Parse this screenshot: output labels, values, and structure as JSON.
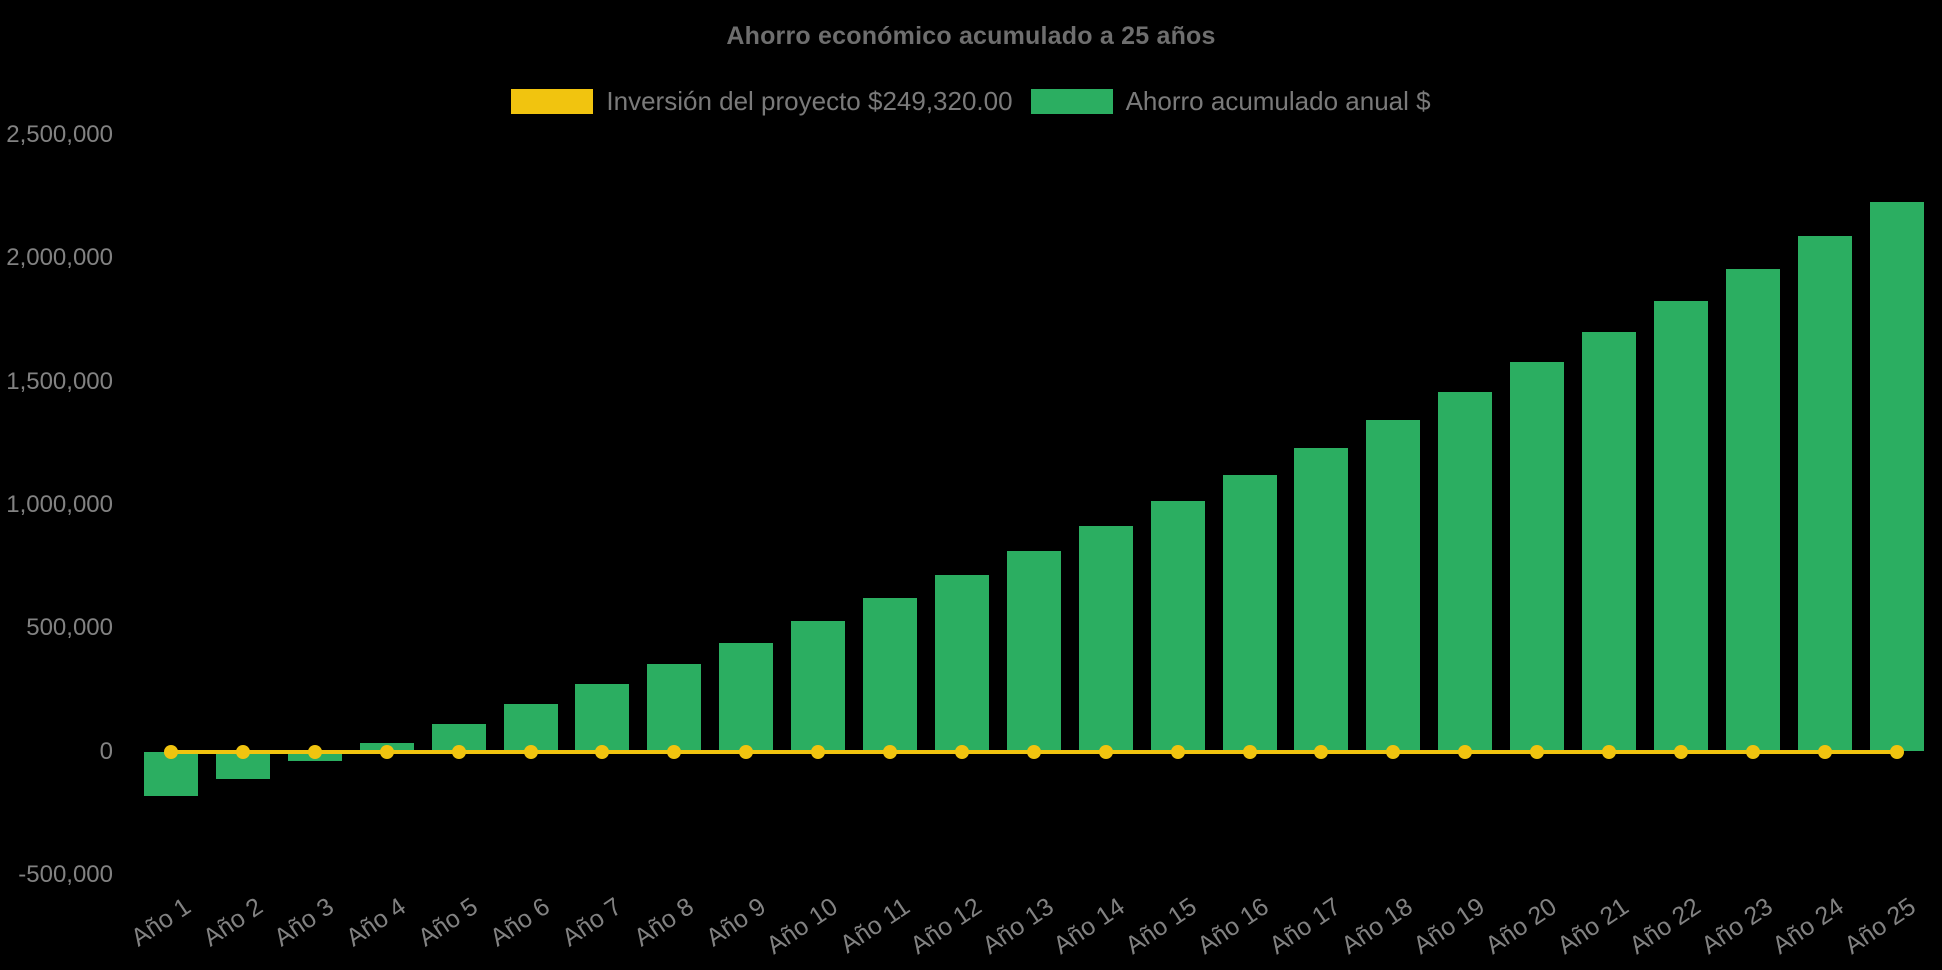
{
  "page": {
    "background": "#000000"
  },
  "chart_data": {
    "type": "bar",
    "title": "Ahorro económico acumulado a 25 años",
    "categories": [
      "Año 1",
      "Año 2",
      "Año 3",
      "Año 4",
      "Año 5",
      "Año 6",
      "Año 7",
      "Año 8",
      "Año 9",
      "Año 10",
      "Año 11",
      "Año 12",
      "Año 13",
      "Año 14",
      "Año 15",
      "Año 16",
      "Año 17",
      "Año 18",
      "Año 19",
      "Año 20",
      "Año 21",
      "Año 22",
      "Año 23",
      "Año 24",
      "Año 25"
    ],
    "series": [
      {
        "name": "Inversión del proyecto $249,320.00",
        "type": "line",
        "color": "#f1c40f",
        "marker": "circle",
        "values": [
          0,
          0,
          0,
          0,
          0,
          0,
          0,
          0,
          0,
          0,
          0,
          0,
          0,
          0,
          0,
          0,
          0,
          0,
          0,
          0,
          0,
          0,
          0,
          0,
          0
        ]
      },
      {
        "name": "Ahorro acumulado anual $",
        "type": "bar",
        "color": "#2bae61",
        "values": [
          -181000,
          -111000,
          -39000,
          35000,
          112000,
          191000,
          272000,
          355000,
          441000,
          530000,
          622000,
          716000,
          813000,
          913000,
          1015000,
          1121000,
          1230000,
          1343000,
          1459000,
          1578000,
          1701000,
          1827000,
          1957000,
          2092000,
          2230000
        ]
      }
    ],
    "ylim": [
      -500000,
      2500000
    ],
    "yticks": [
      {
        "value": 2500000,
        "label": "2,500,000"
      },
      {
        "value": 2000000,
        "label": "2,000,000"
      },
      {
        "value": 1500000,
        "label": "1,500,000"
      },
      {
        "value": 1000000,
        "label": "1,000,000"
      },
      {
        "value": 500000,
        "label": "500,000"
      },
      {
        "value": 0,
        "label": "0"
      },
      {
        "value": -500000,
        "label": "-500,000"
      }
    ],
    "grid": false,
    "legend_position": "top",
    "x_label_rotation_deg": -34
  }
}
